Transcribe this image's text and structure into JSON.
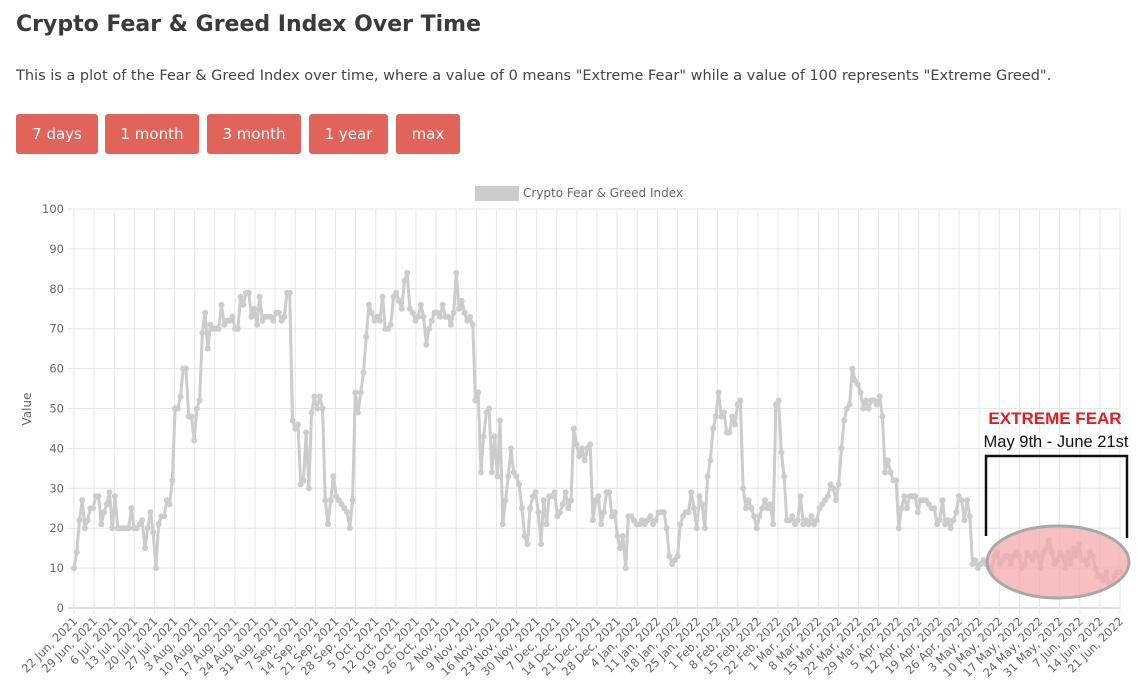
{
  "page": {
    "title": "Crypto Fear & Greed Index Over Time",
    "description": "This is a plot of the Fear & Greed Index over time, where a value of 0 means \"Extreme Fear\" while a value of 100 represents \"Extreme Greed\"."
  },
  "range_buttons": [
    {
      "label": "7 days"
    },
    {
      "label": "1 month"
    },
    {
      "label": "3 month"
    },
    {
      "label": "1 year"
    },
    {
      "label": "max"
    }
  ],
  "colors": {
    "button": "#e0645a",
    "line": "#cccccc",
    "grid": "#e6e6e6",
    "annotation_red": "#e02020",
    "highlight_fill": "#f4a6a6",
    "highlight_stroke": "#a8a8a8"
  },
  "annotation": {
    "heading": "EXTREME FEAR",
    "range": "May 9th - June 21st"
  },
  "chart_data": {
    "type": "line",
    "legend": "Crypto Fear & Greed Index",
    "legend_position": "top",
    "ylabel": "Value",
    "ylim": [
      0,
      100
    ],
    "yticks": [
      0,
      10,
      20,
      30,
      40,
      50,
      60,
      70,
      80,
      90,
      100
    ],
    "grid": true,
    "x_start": "2021-06-22",
    "x_end": "2022-06-21",
    "xtick_labels": [
      "22 Jun, 2021",
      "29 Jun, 2021",
      "6 Jul, 2021",
      "13 Jul, 2021",
      "20 Jul, 2021",
      "27 Jul, 2021",
      "3 Aug, 2021",
      "10 Aug, 2021",
      "17 Aug, 2021",
      "24 Aug, 2021",
      "31 Aug, 2021",
      "7 Sep, 2021",
      "14 Sep, 2021",
      "21 Sep, 2021",
      "28 Sep, 2021",
      "5 Oct, 2021",
      "12 Oct, 2021",
      "19 Oct, 2021",
      "26 Oct, 2021",
      "2 Nov, 2021",
      "9 Nov, 2021",
      "16 Nov, 2021",
      "23 Nov, 2021",
      "30 Nov, 2021",
      "7 Dec, 2021",
      "14 Dec, 2021",
      "21 Dec, 2021",
      "28 Dec, 2021",
      "4 Jan, 2022",
      "11 Jan, 2022",
      "18 Jan, 2022",
      "25 Jan, 2022",
      "1 Feb, 2022",
      "8 Feb, 2022",
      "15 Feb, 2022",
      "22 Feb, 2022",
      "1 Mar, 2022",
      "8 Mar, 2022",
      "15 Mar, 2022",
      "22 Mar, 2022",
      "29 Mar, 2022",
      "5 Apr, 2022",
      "12 Apr, 2022",
      "19 Apr, 2022",
      "26 Apr, 2022",
      "3 May, 2022",
      "10 May, 2022",
      "17 May, 2022",
      "24 May, 2022",
      "31 May, 2022",
      "7 Jun, 2022",
      "14 Jun, 2022",
      "21 Jun, 2022"
    ],
    "values": [
      10,
      14,
      22,
      27,
      20,
      22,
      25,
      25,
      28,
      28,
      21,
      24,
      26,
      29,
      20,
      28,
      20,
      20,
      20,
      20,
      20,
      25,
      20,
      20,
      21,
      22,
      15,
      20,
      24,
      19,
      10,
      21,
      23,
      23,
      27,
      26,
      32,
      50,
      50,
      53,
      60,
      60,
      48,
      48,
      42,
      50,
      52,
      69,
      74,
      65,
      71,
      70,
      70,
      70,
      76,
      71,
      72,
      72,
      73,
      70,
      70,
      78,
      76,
      79,
      79,
      73,
      75,
      71,
      78,
      72,
      73,
      73,
      73,
      72,
      74,
      74,
      72,
      73,
      79,
      79,
      47,
      45,
      46,
      31,
      32,
      44,
      30,
      49,
      53,
      50,
      53,
      50,
      27,
      21,
      27,
      33,
      28,
      27,
      26,
      25,
      24,
      20,
      27,
      54,
      49,
      54,
      59,
      68,
      76,
      74,
      72,
      73,
      72,
      78,
      70,
      70,
      71,
      78,
      79,
      77,
      75,
      82,
      84,
      75,
      74,
      72,
      73,
      76,
      73,
      66,
      70,
      72,
      74,
      74,
      73,
      76,
      73,
      73,
      71,
      74,
      84,
      75,
      77,
      74,
      72,
      73,
      71,
      52,
      54,
      34,
      43,
      49,
      50,
      34,
      43,
      33,
      47,
      21,
      27,
      33,
      40,
      34,
      33,
      31,
      25,
      18,
      16,
      25,
      28,
      29,
      24,
      16,
      27,
      21,
      28,
      28,
      29,
      23,
      24,
      26,
      29,
      25,
      27,
      45,
      41,
      38,
      40,
      37,
      40,
      41,
      22,
      27,
      28,
      21,
      24,
      29,
      29,
      23,
      24,
      18,
      15,
      18,
      10,
      23,
      23,
      22,
      21,
      21,
      22,
      21,
      22,
      23,
      21,
      22,
      24,
      24,
      24,
      20,
      13,
      11,
      12,
      13,
      21,
      23,
      24,
      24,
      29,
      25,
      20,
      28,
      26,
      20,
      33,
      37,
      45,
      48,
      54,
      48,
      49,
      44,
      44,
      48,
      46,
      51,
      52,
      30,
      25,
      27,
      25,
      23,
      20,
      23,
      25,
      27,
      25,
      26,
      21,
      51,
      52,
      39,
      33,
      22,
      22,
      23,
      21,
      22,
      28,
      21,
      22,
      21,
      23,
      21,
      22,
      25,
      26,
      27,
      28,
      31,
      30,
      27,
      31,
      40,
      47,
      50,
      51,
      60,
      57,
      56,
      54,
      50,
      52,
      50,
      52,
      52,
      51,
      53,
      48,
      34,
      37,
      34,
      32,
      32,
      20,
      25,
      28,
      25,
      28,
      28,
      28,
      24,
      27,
      27,
      27,
      26,
      25,
      25,
      21,
      22,
      27,
      21,
      22,
      20,
      22,
      24,
      28,
      27,
      22,
      27,
      23,
      11,
      12,
      10,
      11,
      12,
      11,
      10,
      9,
      13,
      14,
      11,
      12,
      13,
      13,
      11,
      13,
      14,
      13,
      10,
      11,
      14,
      13,
      12,
      14,
      13,
      10,
      14,
      15,
      17,
      14,
      11,
      12,
      14,
      13,
      10,
      14,
      11,
      15,
      13,
      16,
      12,
      12,
      11,
      14,
      13,
      10,
      8,
      8,
      7,
      9,
      6,
      6,
      8,
      9,
      9
    ]
  }
}
